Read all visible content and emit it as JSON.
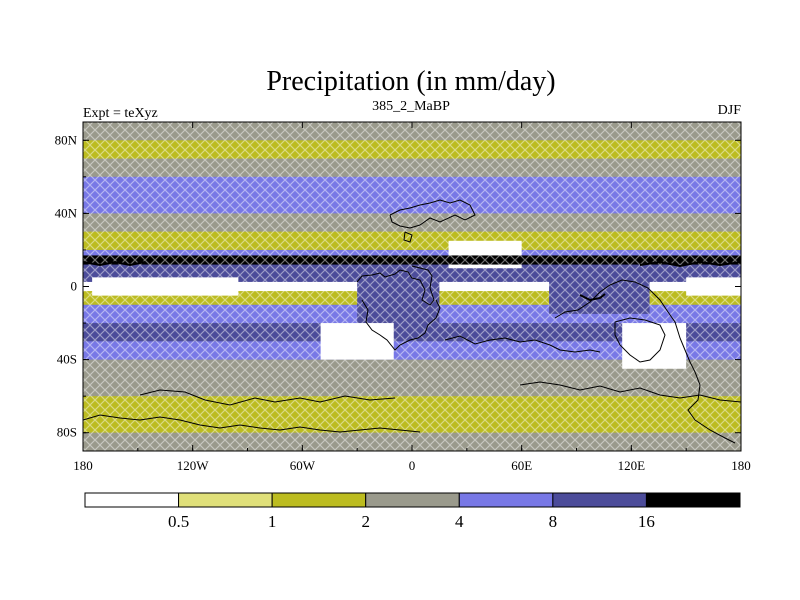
{
  "chart_data": {
    "type": "heatmap",
    "title": "Precipitation (in mm/day)",
    "left_string": "Expt = teXyz",
    "center_string": "385_2_MaBP",
    "right_string": "DJF",
    "x_ticks": [
      "180",
      "120W",
      "60W",
      "0",
      "60E",
      "120E",
      "180"
    ],
    "x_tick_values": [
      -180,
      -120,
      -60,
      0,
      60,
      120,
      180
    ],
    "y_ticks": [
      "80N",
      "40N",
      "0",
      "40S",
      "80S"
    ],
    "y_tick_values": [
      80,
      40,
      0,
      -40,
      -80
    ],
    "xlim": [
      -180,
      180
    ],
    "ylim": [
      -90,
      90
    ],
    "levels": [
      0.5,
      1,
      2,
      4,
      8,
      16
    ],
    "colorbar_labels": [
      "0.5",
      "1",
      "2",
      "4",
      "8",
      "16"
    ],
    "colors": [
      "#ffffff",
      "#e0e07a",
      "#bcbc20",
      "#9a9a8c",
      "#7878e6",
      "#4c4c9a",
      "#000000"
    ],
    "latitudinal_bands": [
      {
        "lat": 85,
        "value": 2.5
      },
      {
        "lat": 75,
        "value": 1.5
      },
      {
        "lat": 65,
        "value": 3.5
      },
      {
        "lat": 55,
        "value": 6.0
      },
      {
        "lat": 45,
        "value": 5.0
      },
      {
        "lat": 35,
        "value": 3.0
      },
      {
        "lat": 25,
        "value": 1.5
      },
      {
        "lat": 15,
        "value": 6.0
      },
      {
        "lat": 10,
        "value": 12.0
      },
      {
        "lat": 5,
        "value": 9.0
      },
      {
        "lat": 0,
        "value": 0.4
      },
      {
        "lat": -5,
        "value": 1.5
      },
      {
        "lat": -15,
        "value": 6.0
      },
      {
        "lat": -25,
        "value": 9.0
      },
      {
        "lat": -35,
        "value": 6.0
      },
      {
        "lat": -45,
        "value": 3.0
      },
      {
        "lat": -55,
        "value": 3.0
      },
      {
        "lat": -65,
        "value": 1.5
      },
      {
        "lat": -75,
        "value": 1.0
      },
      {
        "lat": -85,
        "value": 2.5
      }
    ],
    "regions": [
      {
        "lon": [
          -30,
          15
        ],
        "lat": [
          -20,
          10
        ],
        "value": 10
      },
      {
        "lon": [
          75,
          130
        ],
        "lat": [
          -15,
          12
        ],
        "value": 10
      },
      {
        "lon": [
          -50,
          -10
        ],
        "lat": [
          -40,
          -20
        ],
        "value": 0.4
      },
      {
        "lon": [
          115,
          150
        ],
        "lat": [
          -45,
          -20
        ],
        "value": 0.4
      },
      {
        "lon": [
          -175,
          -95
        ],
        "lat": [
          -5,
          5
        ],
        "value": 0.4
      },
      {
        "lon": [
          150,
          180
        ],
        "lat": [
          -5,
          5
        ],
        "value": 0.4
      },
      {
        "lon": [
          20,
          60
        ],
        "lat": [
          10,
          25
        ],
        "value": 0.4
      },
      {
        "lon": [
          -180,
          180
        ],
        "lat": [
          -90,
          -80
        ],
        "value": 2.5
      },
      {
        "lon": [
          -180,
          180
        ],
        "lat": [
          12,
          17
        ],
        "value": 20
      }
    ]
  }
}
